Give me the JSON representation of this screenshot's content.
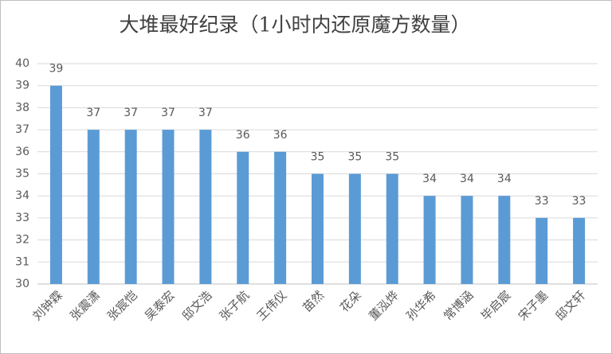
{
  "chart_data": {
    "type": "bar",
    "title": "大堆最好纪录（1小时内还原魔方数量）",
    "categories": [
      "刘钟霖",
      "张震潇",
      "张宸恺",
      "吴泰宏",
      "邸文浩",
      "张子航",
      "王伟仪",
      "苗然",
      "花朵",
      "董泓烨",
      "孙华希",
      "常博涵",
      "毕启宸",
      "宋子墨",
      "邸文轩"
    ],
    "values": [
      39,
      37,
      37,
      37,
      37,
      36,
      36,
      35,
      35,
      35,
      34,
      34,
      34,
      33,
      33
    ],
    "color": "#5b9bd5",
    "ylim": [
      30,
      40
    ],
    "yticks": [
      30,
      31,
      32,
      33,
      34,
      35,
      36,
      37,
      38,
      39,
      40
    ],
    "grid": true
  }
}
